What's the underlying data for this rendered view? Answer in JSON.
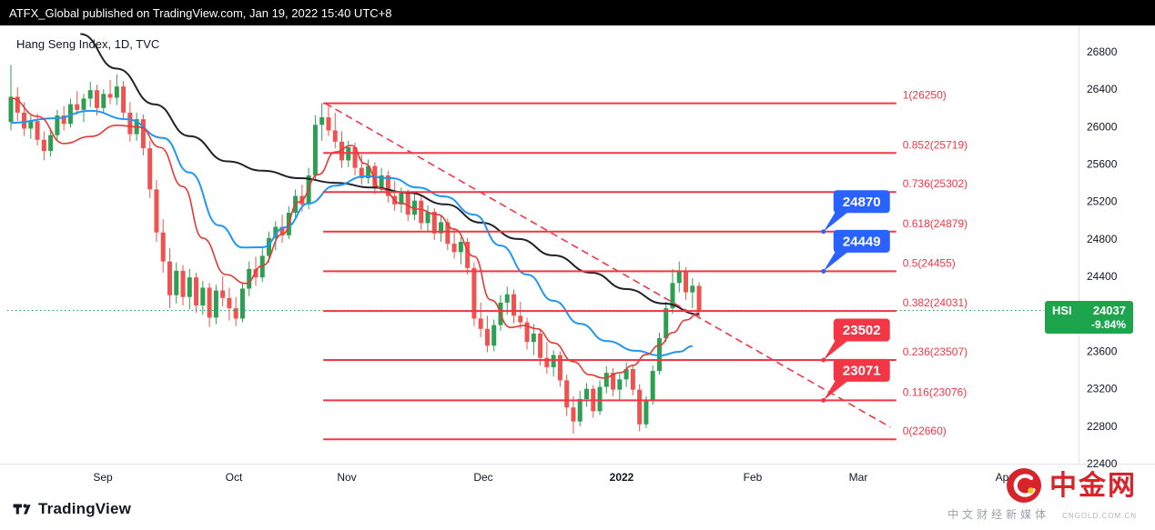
{
  "header": {
    "published_line": "ATFX_Global published on TradingView.com, Jan 19, 2022 15:40 UTC+8"
  },
  "footer": {
    "tradingview_label": "TradingView"
  },
  "watermark": {
    "brand": "中金网",
    "domain": "CNGOLD.COM.CN",
    "tagline": "中文财经新媒体"
  },
  "chart_data": {
    "type": "candlestick",
    "title": "Hang Seng Index, 1D, TVC",
    "colors": {
      "up": "#2e9e53",
      "down": "#ef5350",
      "fib": "#f23645",
      "badge": "#1fa44e"
    },
    "y_axis": {
      "ticks": [
        26800,
        26400,
        26000,
        25600,
        25200,
        24800,
        24400,
        24000,
        23600,
        23200,
        22800,
        22400
      ],
      "max_value": 26800,
      "min_value": 22400
    },
    "x_axis": {
      "labels": [
        "Sep",
        "Oct",
        "Nov",
        "Dec",
        "2022",
        "Feb",
        "Mar",
        "Apr"
      ]
    },
    "price_line": {
      "value": 24037
    },
    "last_price_badge": {
      "symbol": "HSI",
      "price": "24037",
      "change": "-9.84%"
    },
    "fib_from_day": 47.2,
    "fib_to_day": 133.8,
    "callout_anchor_day": 122.8,
    "fib_levels": [
      {
        "label": "1(26250)",
        "value": 26250
      },
      {
        "label": "0.852(25719)",
        "value": 25719
      },
      {
        "label": "0.736(25302)",
        "value": 25302
      },
      {
        "label": "0.618(24879)",
        "value": 24879
      },
      {
        "label": "0.5(24455)",
        "value": 24455
      },
      {
        "label": "0.382(24031)",
        "value": 24031
      },
      {
        "label": "0.236(23507)",
        "value": 23507
      },
      {
        "label": "0.116(23076)",
        "value": 23076
      },
      {
        "label": "0(22660)",
        "value": 22660
      }
    ],
    "trendline": {
      "from_day": 47.5,
      "from_value": 26250,
      "to_day": 132.9,
      "to_value": 22790
    },
    "callouts": [
      {
        "text": "24870",
        "anchor_value": 24879,
        "color": "#2962ff"
      },
      {
        "text": "24449",
        "anchor_value": 24455,
        "color": "#2962ff"
      },
      {
        "text": "23502",
        "anchor_value": 23507,
        "color": "#f23645"
      },
      {
        "text": "23071",
        "anchor_value": 23076,
        "color": "#f23645"
      }
    ],
    "moving_averages": [
      {
        "name": "ma-slow-black",
        "color": "#202228",
        "width": 2,
        "points": [
          [
            10.5,
            26990
          ],
          [
            16,
            26620
          ],
          [
            21.7,
            26240
          ],
          [
            27,
            25900
          ],
          [
            32.7,
            25630
          ],
          [
            38,
            25530
          ],
          [
            43.7,
            25450
          ],
          [
            49,
            25400
          ],
          [
            54.7,
            25350
          ],
          [
            60,
            25295
          ],
          [
            65.7,
            25170
          ],
          [
            71,
            24975
          ],
          [
            76.7,
            24800
          ],
          [
            82,
            24625
          ],
          [
            87.7,
            24440
          ],
          [
            93,
            24265
          ],
          [
            98.7,
            24110
          ],
          [
            104,
            23995
          ]
        ]
      },
      {
        "name": "ma-mid-blue",
        "color": "#2196f3",
        "width": 2,
        "points": [
          [
            0,
            26040
          ],
          [
            6.5,
            26090
          ],
          [
            12,
            26170
          ],
          [
            17.5,
            26080
          ],
          [
            23,
            25880
          ],
          [
            27,
            25510
          ],
          [
            31.5,
            24945
          ],
          [
            35,
            24710
          ],
          [
            38,
            24712
          ],
          [
            41.5,
            24925
          ],
          [
            45,
            25180
          ],
          [
            49,
            25370
          ],
          [
            53.5,
            25470
          ],
          [
            57.5,
            25450
          ],
          [
            61.5,
            25350
          ],
          [
            65.5,
            25255
          ],
          [
            70,
            25060
          ],
          [
            74,
            24730
          ],
          [
            78,
            24420
          ],
          [
            82,
            24140
          ],
          [
            86,
            23895
          ],
          [
            90,
            23710
          ],
          [
            94.5,
            23605
          ],
          [
            98,
            23555
          ],
          [
            101,
            23595
          ],
          [
            103,
            23655
          ]
        ]
      },
      {
        "name": "ma-fast-red",
        "color": "#e53935",
        "width": 1.6,
        "points": [
          [
            0,
            26305
          ],
          [
            4,
            26110
          ],
          [
            8,
            25820
          ],
          [
            12,
            25895
          ],
          [
            16,
            26015
          ],
          [
            19.5,
            25995
          ],
          [
            22.5,
            25780
          ],
          [
            26,
            25360
          ],
          [
            29,
            24810
          ],
          [
            32.5,
            24420
          ],
          [
            35.5,
            24325
          ],
          [
            38,
            24515
          ],
          [
            41,
            24850
          ],
          [
            43.5,
            25195
          ],
          [
            46.5,
            25490
          ],
          [
            49,
            25730
          ],
          [
            51.5,
            25800
          ],
          [
            53.5,
            25605
          ],
          [
            56,
            25335
          ],
          [
            59,
            25180
          ],
          [
            61.5,
            25120
          ],
          [
            64.5,
            25060
          ],
          [
            67,
            24905
          ],
          [
            70,
            24615
          ],
          [
            72.5,
            24150
          ],
          [
            75.5,
            23855
          ],
          [
            77.5,
            23875
          ],
          [
            79.5,
            23840
          ],
          [
            82,
            23690
          ],
          [
            85,
            23490
          ],
          [
            87.5,
            23350
          ],
          [
            89.5,
            23315
          ],
          [
            92,
            23370
          ],
          [
            94,
            23450
          ],
          [
            96,
            23565
          ],
          [
            98,
            23665
          ],
          [
            100,
            23800
          ],
          [
            102,
            23935
          ],
          [
            104,
            24010
          ]
        ]
      }
    ],
    "candles": [
      [
        26050,
        26660,
        25960,
        26320
      ],
      [
        26320,
        26420,
        26060,
        26150
      ],
      [
        26150,
        26260,
        25900,
        25980
      ],
      [
        25980,
        26120,
        25870,
        26060
      ],
      [
        26060,
        26140,
        25800,
        25860
      ],
      [
        25860,
        25950,
        25640,
        25740
      ],
      [
        25740,
        25980,
        25680,
        25910
      ],
      [
        25910,
        26180,
        25850,
        26120
      ],
      [
        26120,
        26220,
        25960,
        26030
      ],
      [
        26030,
        26300,
        25990,
        26240
      ],
      [
        26240,
        26380,
        26130,
        26180
      ],
      [
        26180,
        26350,
        26050,
        26300
      ],
      [
        26300,
        26480,
        26210,
        26390
      ],
      [
        26390,
        26450,
        26120,
        26200
      ],
      [
        26200,
        26400,
        26140,
        26350
      ],
      [
        26350,
        26500,
        26240,
        26310
      ],
      [
        26310,
        26560,
        26230,
        26430
      ],
      [
        26430,
        26490,
        26080,
        26150
      ],
      [
        26150,
        26260,
        25840,
        25920
      ],
      [
        25920,
        26150,
        25850,
        26080
      ],
      [
        26080,
        26130,
        25690,
        25770
      ],
      [
        25770,
        25850,
        25240,
        25330
      ],
      [
        25330,
        25430,
        24770,
        24870
      ],
      [
        24870,
        25010,
        24440,
        24560
      ],
      [
        24560,
        24700,
        24060,
        24200
      ],
      [
        24200,
        24550,
        24110,
        24460
      ],
      [
        24460,
        24520,
        24090,
        24180
      ],
      [
        24180,
        24480,
        24050,
        24390
      ],
      [
        24390,
        24440,
        24010,
        24090
      ],
      [
        24090,
        24350,
        23990,
        24280
      ],
      [
        24280,
        24330,
        23860,
        23960
      ],
      [
        23960,
        24310,
        23890,
        24250
      ],
      [
        24250,
        24400,
        24080,
        24170
      ],
      [
        24170,
        24280,
        23930,
        24060
      ],
      [
        24060,
        24180,
        23870,
        23950
      ],
      [
        23950,
        24330,
        23910,
        24270
      ],
      [
        24270,
        24560,
        24190,
        24480
      ],
      [
        24480,
        24610,
        24300,
        24390
      ],
      [
        24390,
        24700,
        24340,
        24620
      ],
      [
        24620,
        24880,
        24550,
        24810
      ],
      [
        24810,
        24990,
        24680,
        24930
      ],
      [
        24930,
        25060,
        24760,
        24840
      ],
      [
        24840,
        25150,
        24800,
        25080
      ],
      [
        25080,
        25330,
        25010,
        25260
      ],
      [
        25260,
        25380,
        25090,
        25170
      ],
      [
        25170,
        25560,
        25120,
        25480
      ],
      [
        25480,
        26120,
        25430,
        26020
      ],
      [
        26020,
        26250,
        25850,
        26100
      ],
      [
        26100,
        26220,
        25900,
        25960
      ],
      [
        25960,
        26150,
        25770,
        25840
      ],
      [
        25840,
        25950,
        25560,
        25640
      ],
      [
        25640,
        25850,
        25570,
        25780
      ],
      [
        25780,
        25830,
        25480,
        25560
      ],
      [
        25560,
        25700,
        25380,
        25450
      ],
      [
        25450,
        25650,
        25390,
        25580
      ],
      [
        25580,
        25620,
        25280,
        25350
      ],
      [
        25350,
        25560,
        25300,
        25480
      ],
      [
        25480,
        25530,
        25190,
        25260
      ],
      [
        25260,
        25420,
        25100,
        25170
      ],
      [
        25170,
        25350,
        25080,
        25290
      ],
      [
        25290,
        25330,
        24990,
        25060
      ],
      [
        25060,
        25280,
        25000,
        25210
      ],
      [
        25210,
        25260,
        24900,
        24970
      ],
      [
        24970,
        25160,
        24880,
        25090
      ],
      [
        25090,
        25130,
        24790,
        24860
      ],
      [
        24860,
        25050,
        24770,
        24980
      ],
      [
        24980,
        25020,
        24680,
        24750
      ],
      [
        24750,
        24900,
        24590,
        24660
      ],
      [
        24660,
        24820,
        24530,
        24770
      ],
      [
        24770,
        24810,
        24420,
        24490
      ],
      [
        24490,
        24550,
        23870,
        23950
      ],
      [
        23950,
        24120,
        23750,
        23840
      ],
      [
        23840,
        23980,
        23590,
        23660
      ],
      [
        23660,
        23940,
        23600,
        23880
      ],
      [
        23880,
        24200,
        23820,
        24120
      ],
      [
        24120,
        24290,
        23990,
        24210
      ],
      [
        24210,
        24260,
        23900,
        23980
      ],
      [
        23980,
        24130,
        23840,
        23910
      ],
      [
        23910,
        23960,
        23620,
        23700
      ],
      [
        23700,
        23890,
        23560,
        23790
      ],
      [
        23790,
        23830,
        23450,
        23530
      ],
      [
        23530,
        23700,
        23360,
        23430
      ],
      [
        23430,
        23610,
        23330,
        23560
      ],
      [
        23560,
        23600,
        23220,
        23290
      ],
      [
        23290,
        23350,
        22910,
        23000
      ],
      [
        23000,
        23120,
        22720,
        22850
      ],
      [
        22850,
        23180,
        22800,
        23090
      ],
      [
        23090,
        23260,
        23010,
        23200
      ],
      [
        23200,
        23240,
        22890,
        22960
      ],
      [
        22960,
        23290,
        22920,
        23220
      ],
      [
        23220,
        23440,
        23150,
        23370
      ],
      [
        23370,
        23420,
        23120,
        23190
      ],
      [
        23190,
        23360,
        23080,
        23300
      ],
      [
        23300,
        23480,
        23220,
        23410
      ],
      [
        23410,
        23450,
        23130,
        23190
      ],
      [
        23190,
        23250,
        22745,
        22820
      ],
      [
        22820,
        23120,
        22780,
        23070
      ],
      [
        23070,
        23450,
        23030,
        23390
      ],
      [
        23390,
        23800,
        23350,
        23740
      ],
      [
        23740,
        24130,
        23700,
        24060
      ],
      [
        24060,
        24480,
        24000,
        24330
      ],
      [
        24330,
        24560,
        24230,
        24450
      ],
      [
        24450,
        24500,
        24150,
        24230
      ],
      [
        24230,
        24380,
        24060,
        24300
      ],
      [
        24300,
        24340,
        23950,
        24037
      ]
    ]
  }
}
